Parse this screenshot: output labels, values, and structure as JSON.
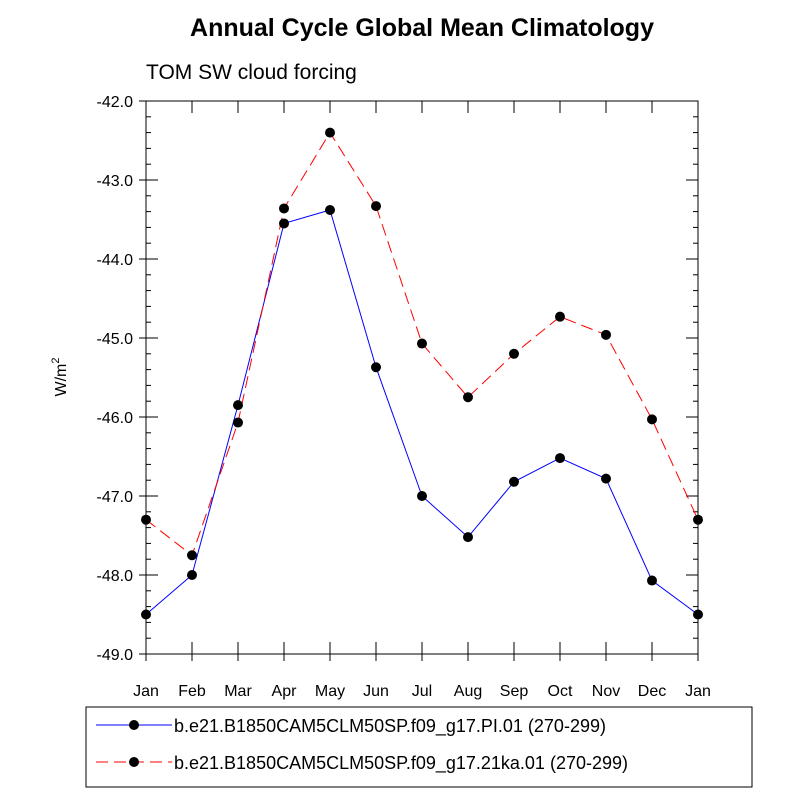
{
  "chart_data": {
    "type": "line",
    "title": "Annual Cycle Global Mean Climatology",
    "subtitle": "TOM SW cloud forcing",
    "ylabel": "W/m",
    "ylabel_superscript": "2",
    "xlabel": "",
    "categories": [
      "Jan",
      "Feb",
      "Mar",
      "Apr",
      "May",
      "Jun",
      "Jul",
      "Aug",
      "Sep",
      "Oct",
      "Nov",
      "Dec",
      "Jan"
    ],
    "ylim": [
      -49.0,
      -42.0
    ],
    "yticks": [
      -42.0,
      -43.0,
      -44.0,
      -45.0,
      -46.0,
      -47.0,
      -48.0,
      -49.0
    ],
    "ytick_labels": [
      "-42.0",
      "-43.0",
      "-44.0",
      "-45.0",
      "-46.0",
      "-47.0",
      "-48.0",
      "-49.0"
    ],
    "grid": false,
    "legend_position": "bottom",
    "series": [
      {
        "name": "b.e21.B1850CAM5CLM50SP.f09_g17.PI.01 (270-299)",
        "color": "#0000ff",
        "line_style": "solid",
        "marker": "filled-circle",
        "values": [
          -48.5,
          -48.0,
          -45.85,
          -43.55,
          -43.38,
          -45.37,
          -47.0,
          -47.52,
          -46.82,
          -46.52,
          -46.78,
          -48.07,
          -48.5
        ]
      },
      {
        "name": "b.e21.B1850CAM5CLM50SP.f09_g17.21ka.01 (270-299)",
        "color": "#ff0000",
        "line_style": "dashed",
        "marker": "filled-circle",
        "values": [
          -47.3,
          -47.75,
          -46.07,
          -43.36,
          -42.4,
          -43.33,
          -45.07,
          -45.75,
          -45.2,
          -44.73,
          -44.96,
          -46.03,
          -47.3
        ]
      }
    ]
  }
}
